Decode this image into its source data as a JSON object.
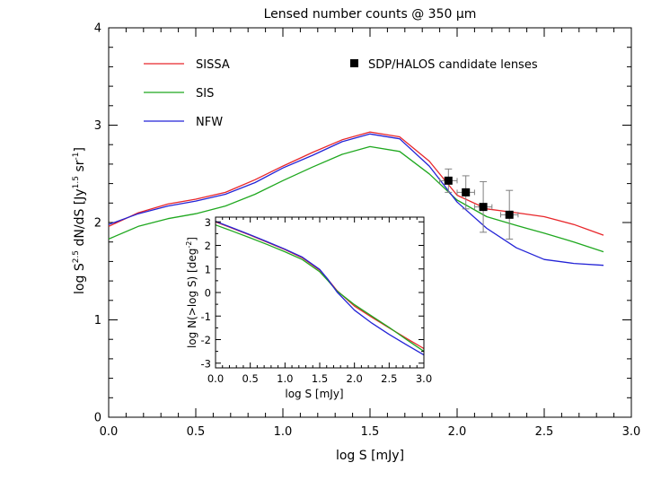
{
  "chart_data": [
    {
      "id": "main",
      "type": "line",
      "title": "Lensed number counts @ 350 μm",
      "xlabel": "log S [mJy]",
      "ylabel": "log S^2.5 dN/dS [Jy^1.5 sr^-1]",
      "ylabel_parts": {
        "a": "log S",
        "b": "2.5",
        "c": " dN/dS [Jy",
        "d": "1.5",
        "e": " sr",
        "f": "-1",
        "g": "]"
      },
      "xlim": [
        0,
        3
      ],
      "ylim": [
        0,
        4
      ],
      "xticks": [
        "0.0",
        "0.5",
        "1.0",
        "1.5",
        "2.0",
        "2.5",
        "3.0"
      ],
      "yticks": [
        "0",
        "1",
        "2",
        "3",
        "4"
      ],
      "legend_placement": "top-left",
      "series": [
        {
          "name": "SISSA",
          "color": "#e8262a",
          "x": [
            0,
            0.17,
            0.34,
            0.5,
            0.67,
            0.84,
            1.0,
            1.17,
            1.34,
            1.5,
            1.67,
            1.84,
            2.0,
            2.17,
            2.34,
            2.5,
            2.67,
            2.84
          ],
          "y": [
            1.96,
            2.1,
            2.19,
            2.24,
            2.31,
            2.44,
            2.58,
            2.72,
            2.85,
            2.93,
            2.88,
            2.63,
            2.28,
            2.14,
            2.1,
            2.06,
            1.98,
            1.87
          ]
        },
        {
          "name": "SIS",
          "color": "#1fa81f",
          "x": [
            0,
            0.17,
            0.34,
            0.5,
            0.67,
            0.84,
            1.0,
            1.17,
            1.34,
            1.5,
            1.67,
            1.84,
            2.0,
            2.17,
            2.34,
            2.5,
            2.67,
            2.84
          ],
          "y": [
            1.83,
            1.96,
            2.04,
            2.09,
            2.17,
            2.29,
            2.43,
            2.57,
            2.7,
            2.78,
            2.73,
            2.5,
            2.23,
            2.06,
            1.97,
            1.89,
            1.8,
            1.7
          ]
        },
        {
          "name": "NFW",
          "color": "#2323d6",
          "x": [
            0,
            0.17,
            0.34,
            0.5,
            0.67,
            0.84,
            1.0,
            1.17,
            1.34,
            1.5,
            1.67,
            1.84,
            2.0,
            2.17,
            2.34,
            2.5,
            2.67,
            2.84
          ],
          "y": [
            1.98,
            2.09,
            2.17,
            2.22,
            2.29,
            2.41,
            2.56,
            2.69,
            2.83,
            2.91,
            2.86,
            2.58,
            2.21,
            1.94,
            1.74,
            1.62,
            1.58,
            1.56
          ]
        }
      ],
      "points": {
        "name": "SDP/HALOS candidate lenses",
        "color": "#000000",
        "error_color": "#808080",
        "x": [
          1.95,
          2.05,
          2.15,
          2.3
        ],
        "y": [
          2.43,
          2.31,
          2.16,
          2.08
        ],
        "yerr": [
          0.12,
          0.17,
          0.26,
          0.25
        ],
        "xerr": [
          0.05,
          0.05,
          0.05,
          0.05
        ]
      }
    },
    {
      "id": "inset",
      "type": "line",
      "xlabel": "log S [mJy]",
      "ylabel": "log N(>log S) [deg^-2]",
      "ylabel_parts": {
        "a": "log N(>log S) [deg",
        "b": "-2",
        "c": "]"
      },
      "xlim": [
        0,
        3
      ],
      "ylim": [
        -3.2,
        3.2
      ],
      "xticks": [
        "0.0",
        "0.5",
        "1.0",
        "1.5",
        "2.0",
        "2.5",
        "3.0"
      ],
      "yticks": [
        "-3",
        "-2",
        "-1",
        "0",
        "1",
        "2",
        "3"
      ],
      "series": [
        {
          "name": "SISSA",
          "color": "#e8262a",
          "x": [
            0,
            0.25,
            0.5,
            0.75,
            1.0,
            1.25,
            1.5,
            1.62,
            1.75,
            2.0,
            2.25,
            2.5,
            2.75,
            3.0
          ],
          "y": [
            3.0,
            2.72,
            2.43,
            2.13,
            1.82,
            1.47,
            0.95,
            0.55,
            0.08,
            -0.58,
            -1.05,
            -1.5,
            -1.95,
            -2.38
          ]
        },
        {
          "name": "SIS",
          "color": "#1fa81f",
          "x": [
            0,
            0.25,
            0.5,
            0.75,
            1.0,
            1.25,
            1.5,
            1.62,
            1.75,
            2.0,
            2.25,
            2.5,
            2.75,
            3.0
          ],
          "y": [
            2.87,
            2.6,
            2.32,
            2.03,
            1.73,
            1.4,
            0.88,
            0.5,
            0.06,
            -0.52,
            -1.0,
            -1.48,
            -2.0,
            -2.5
          ]
        },
        {
          "name": "NFW",
          "color": "#2323d6",
          "x": [
            0,
            0.25,
            0.5,
            0.75,
            1.0,
            1.25,
            1.5,
            1.62,
            1.75,
            2.0,
            2.25,
            2.5,
            2.75,
            3.0
          ],
          "y": [
            3.02,
            2.74,
            2.45,
            2.15,
            1.84,
            1.5,
            0.98,
            0.55,
            0.02,
            -0.75,
            -1.3,
            -1.78,
            -2.22,
            -2.65
          ]
        }
      ]
    }
  ]
}
